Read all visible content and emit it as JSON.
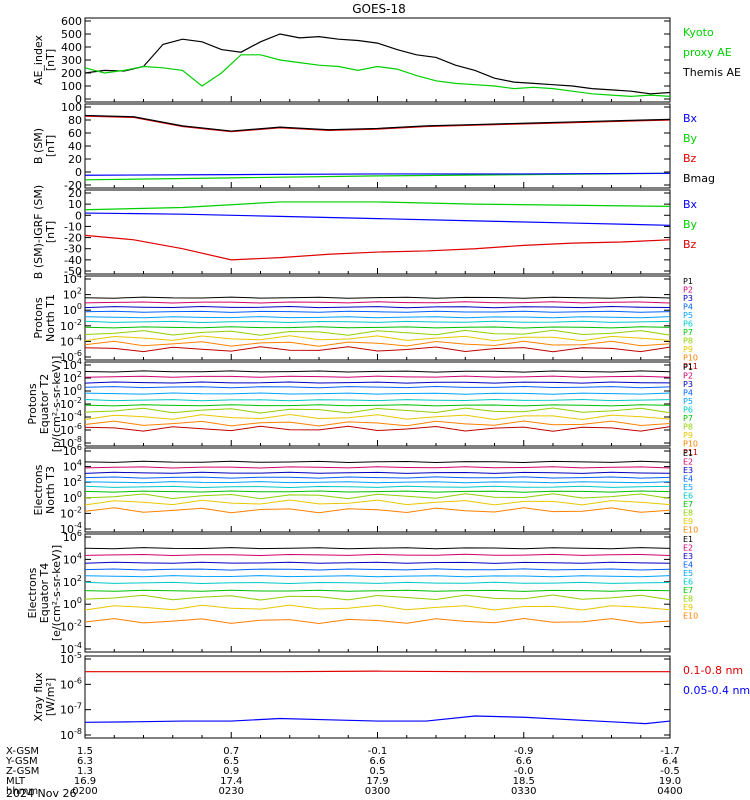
{
  "title": "GOES-18",
  "date_label": "2024 Nov 26",
  "colors": {
    "black": "#000000",
    "green": "#00d000",
    "blue": "#0000ff",
    "red": "#e00000",
    "darkred": "#800000",
    "ch": [
      "#000000",
      "#d00070",
      "#0000c0",
      "#0060ff",
      "#00a0ff",
      "#00c8c8",
      "#00c000",
      "#90d000",
      "#e8c800",
      "#ff8000",
      "#c00000"
    ]
  },
  "panels": [
    {
      "id": "ae",
      "ylabel": [
        "AE_index",
        "[nT]"
      ],
      "yticks": [
        "600",
        "500",
        "400",
        "300",
        "200",
        "100",
        "0"
      ],
      "legend": [
        {
          "text": "Kyoto",
          "color": "#00d000"
        },
        {
          "text": "proxy AE",
          "color": "#00d000"
        },
        {
          "text": "Themis AE",
          "color": "#000000"
        }
      ]
    },
    {
      "id": "bsm",
      "ylabel": [
        "B (SM)",
        "[nT]"
      ],
      "yticks": [
        "100",
        "80",
        "60",
        "40",
        "20",
        "0",
        "-20"
      ],
      "legend": [
        {
          "text": "Bx",
          "color": "#0000ff"
        },
        {
          "text": "By",
          "color": "#00d000"
        },
        {
          "text": "Bz",
          "color": "#e00000"
        },
        {
          "text": "Bmag",
          "color": "#000000"
        }
      ]
    },
    {
      "id": "bigrf",
      "ylabel": [
        "B (SM)-IGRF (SM)",
        "[nT]"
      ],
      "yticks": [
        "20",
        "10",
        "0",
        "-10",
        "-20",
        "-30",
        "-40",
        "-50"
      ],
      "legend": [
        {
          "text": "Bx",
          "color": "#0000ff"
        },
        {
          "text": "By",
          "color": "#00d000"
        },
        {
          "text": "Bz",
          "color": "#e00000"
        }
      ]
    },
    {
      "id": "pnorth",
      "ylabel": [
        "Protons",
        "North T1"
      ],
      "yticks": [
        "10^4",
        "10^2",
        "10^0",
        "10^-2",
        "10^-4",
        "10^-6"
      ],
      "legend": [
        {
          "text": "P1"
        },
        {
          "text": "P2"
        },
        {
          "text": "P3"
        },
        {
          "text": "P4"
        },
        {
          "text": "P5"
        },
        {
          "text": "P6"
        },
        {
          "text": "P7"
        },
        {
          "text": "P8"
        },
        {
          "text": "P9"
        },
        {
          "text": "P10"
        },
        {
          "text": "P11"
        }
      ]
    },
    {
      "id": "pequator",
      "ylabel": [
        "Protons",
        "Equator T2",
        "[p/(cm²-s-sr-keV)]"
      ],
      "yticks": [
        "10^4",
        "10^2",
        "10^0",
        "10^-2",
        "10^-4",
        "10^-6",
        "10^-8"
      ],
      "legend": [
        {
          "text": "P1"
        },
        {
          "text": "P2"
        },
        {
          "text": "P3"
        },
        {
          "text": "P4"
        },
        {
          "text": "P5"
        },
        {
          "text": "P6"
        },
        {
          "text": "P7"
        },
        {
          "text": "P8"
        },
        {
          "text": "P9"
        },
        {
          "text": "P10"
        },
        {
          "text": "P11"
        }
      ]
    },
    {
      "id": "enorth",
      "ylabel": [
        "Electrons",
        "North T3"
      ],
      "yticks": [
        "10^6",
        "10^4",
        "10^2",
        "10^0",
        "10^-2",
        "10^-4"
      ],
      "legend": [
        {
          "text": "E1"
        },
        {
          "text": "E2"
        },
        {
          "text": "E3"
        },
        {
          "text": "E4"
        },
        {
          "text": "E5"
        },
        {
          "text": "E6"
        },
        {
          "text": "E7"
        },
        {
          "text": "E8"
        },
        {
          "text": "E9"
        },
        {
          "text": "E10"
        }
      ]
    },
    {
      "id": "eequator",
      "ylabel": [
        "Electrons",
        "Equator T4",
        "[e/(cm²-s-sr-keV)]"
      ],
      "yticks": [
        "10^6",
        "10^4",
        "10^2",
        "10^0",
        "10^-2",
        "10^-4"
      ],
      "legend": [
        {
          "text": "E1"
        },
        {
          "text": "E2"
        },
        {
          "text": "E3"
        },
        {
          "text": "E4"
        },
        {
          "text": "E5"
        },
        {
          "text": "E6"
        },
        {
          "text": "E7"
        },
        {
          "text": "E8"
        },
        {
          "text": "E9"
        },
        {
          "text": "E10"
        }
      ]
    },
    {
      "id": "xray",
      "ylabel": [
        "Xray flux",
        "[W/m²]"
      ],
      "yticks": [
        "10^-5",
        "10^-6",
        "10^-7",
        "10^-8"
      ],
      "legend": [
        {
          "text": "0.1-0.8 nm",
          "color": "#e00000"
        },
        {
          "text": "0.05-0.4 nm",
          "color": "#0000ff"
        }
      ]
    }
  ],
  "footer": {
    "row_labels": [
      "X-GSM",
      "Y-GSM",
      "Z-GSM",
      "MLT",
      "hhmm"
    ],
    "columns": [
      {
        "values": [
          "1.5",
          "6.3",
          "1.3",
          "16.9",
          "0200"
        ]
      },
      {
        "values": [
          "0.7",
          "6.5",
          "0.9",
          "17.4",
          "0230"
        ]
      },
      {
        "values": [
          "-0.1",
          "6.6",
          "0.5",
          "17.9",
          "0300"
        ]
      },
      {
        "values": [
          "-0.9",
          "6.6",
          "-0.0",
          "18.5",
          "0330"
        ]
      },
      {
        "values": [
          "-1.7",
          "6.4",
          "-0.5",
          "19.0",
          "0400"
        ]
      }
    ]
  },
  "chart_data": {
    "type": "line",
    "title": "GOES-18",
    "x_unit": "UT",
    "x_range": [
      "0200",
      "0400"
    ],
    "panels": [
      {
        "id": "ae",
        "ylim": [
          0,
          600
        ],
        "series": [
          {
            "name": "Themis AE",
            "color": "#000000",
            "x": [
              0,
              4,
              8,
              12,
              16,
              20,
              24,
              28,
              32,
              36,
              40,
              44,
              48,
              52,
              56,
              60,
              64,
              68,
              72,
              76,
              80,
              84,
              88,
              92,
              96,
              100,
              104,
              108,
              112,
              116,
              120
            ],
            "values": [
              200,
              220,
              215,
              250,
              420,
              460,
              440,
              380,
              360,
              440,
              500,
              470,
              480,
              460,
              450,
              430,
              380,
              340,
              320,
              260,
              220,
              160,
              130,
              120,
              110,
              100,
              80,
              70,
              60,
              40,
              50
            ]
          },
          {
            "name": "Kyoto proxy AE",
            "color": "#00d000",
            "x": [
              0,
              4,
              8,
              12,
              16,
              20,
              24,
              28,
              32,
              36,
              40,
              44,
              48,
              52,
              56,
              60,
              64,
              68,
              72,
              76,
              80,
              84,
              88,
              92,
              96,
              100,
              104,
              108,
              112,
              116,
              120
            ],
            "values": [
              240,
              200,
              220,
              250,
              240,
              220,
              100,
              200,
              340,
              340,
              300,
              280,
              260,
              250,
              220,
              250,
              230,
              180,
              140,
              120,
              110,
              100,
              80,
              90,
              80,
              60,
              40,
              30,
              20,
              30,
              20
            ]
          }
        ]
      },
      {
        "id": "bsm",
        "ylim": [
          -20,
          100
        ],
        "series": [
          {
            "name": "Bz",
            "color": "#e00000",
            "x": [
              0,
              10,
              20,
              30,
              40,
              50,
              60,
              70,
              80,
              90,
              100,
              110,
              120
            ],
            "values": [
              86,
              84,
              70,
              62,
              68,
              64,
              66,
              70,
              72,
              74,
              76,
              78,
              80
            ]
          },
          {
            "name": "Bmag",
            "color": "#000000",
            "x": [
              0,
              10,
              20,
              30,
              40,
              50,
              60,
              70,
              80,
              90,
              100,
              110,
              120
            ],
            "values": [
              87,
              85,
              71,
              63,
              69,
              65,
              67,
              71,
              73,
              75,
              77,
              79,
              81
            ]
          },
          {
            "name": "By",
            "color": "#00d000",
            "x": [
              0,
              30,
              60,
              90,
              120
            ],
            "values": [
              -12,
              -9,
              -6,
              -4,
              -2
            ]
          },
          {
            "name": "Bx",
            "color": "#0000ff",
            "x": [
              0,
              30,
              60,
              90,
              120
            ],
            "values": [
              -5,
              -4,
              -3,
              -3,
              -2
            ]
          }
        ]
      },
      {
        "id": "bigrf",
        "ylim": [
          -50,
          20
        ],
        "series": [
          {
            "name": "By",
            "color": "#00d000",
            "x": [
              0,
              20,
              40,
              60,
              80,
              100,
              120
            ],
            "values": [
              5,
              7,
              12,
              12,
              10,
              9,
              8
            ]
          },
          {
            "name": "Bx",
            "color": "#0000ff",
            "x": [
              0,
              20,
              40,
              60,
              80,
              100,
              120
            ],
            "values": [
              2,
              1,
              -1,
              -3,
              -5,
              -7,
              -9
            ]
          },
          {
            "name": "Bz",
            "color": "#e00000",
            "x": [
              0,
              10,
              20,
              30,
              40,
              50,
              60,
              70,
              80,
              90,
              100,
              110,
              120
            ],
            "values": [
              -18,
              -22,
              -30,
              -40,
              -38,
              -35,
              -33,
              -32,
              -30,
              -27,
              -25,
              -24,
              -22
            ]
          }
        ]
      },
      {
        "id": "pnorth",
        "scale": "log",
        "ylim": [
          -6,
          4
        ],
        "channels": [
          "P1",
          "P2",
          "P3",
          "P4",
          "P5",
          "P6",
          "P7",
          "P8",
          "P9",
          "P10",
          "P11"
        ],
        "log_values": [
          1.6,
          1.0,
          0.4,
          -0.2,
          -0.9,
          -1.5,
          -2.2,
          -2.9,
          -3.6,
          -4.3,
          -5.0
        ]
      },
      {
        "id": "pequator",
        "scale": "log",
        "ylim": [
          -8,
          4
        ],
        "channels": [
          "P1",
          "P2",
          "P3",
          "P4",
          "P5",
          "P6",
          "P7",
          "P8",
          "P9",
          "P10",
          "P11"
        ],
        "log_values": [
          3.0,
          2.2,
          1.3,
          0.6,
          -0.4,
          -1.4,
          -2.2,
          -3.0,
          -4.0,
          -5.0,
          -5.8
        ]
      },
      {
        "id": "enorth",
        "scale": "log",
        "ylim": [
          -4,
          6
        ],
        "channels": [
          "E1",
          "E2",
          "E3",
          "E4",
          "E5",
          "E6",
          "E7",
          "E8",
          "E9",
          "E10"
        ],
        "log_values": [
          4.6,
          3.9,
          3.2,
          2.6,
          2.0,
          1.4,
          0.8,
          0.2,
          -0.6,
          -1.6
        ]
      },
      {
        "id": "eequator",
        "scale": "log",
        "ylim": [
          -4,
          6
        ],
        "channels": [
          "E1",
          "E2",
          "E3",
          "E4",
          "E5",
          "E6",
          "E7",
          "E8",
          "E9",
          "E10"
        ],
        "log_values": [
          5.0,
          4.4,
          3.7,
          3.1,
          2.5,
          1.9,
          1.2,
          0.6,
          -0.3,
          -1.5
        ]
      },
      {
        "id": "xray",
        "scale": "log",
        "ylim": [
          -8,
          -5
        ],
        "series": [
          {
            "name": "0.1-0.8 nm",
            "color": "#e00000",
            "x": [
              0,
              20,
              40,
              60,
              80,
              100,
              120
            ],
            "values": [
              -5.5,
              -5.5,
              -5.5,
              -5.48,
              -5.5,
              -5.5,
              -5.5
            ]
          },
          {
            "name": "0.05-0.4 nm",
            "color": "#0000ff",
            "x": [
              0,
              10,
              20,
              30,
              40,
              50,
              60,
              70,
              80,
              90,
              100,
              110,
              115,
              120
            ],
            "values": [
              -7.5,
              -7.48,
              -7.45,
              -7.45,
              -7.35,
              -7.4,
              -7.45,
              -7.45,
              -7.25,
              -7.3,
              -7.4,
              -7.5,
              -7.55,
              -7.45
            ]
          }
        ]
      }
    ]
  }
}
